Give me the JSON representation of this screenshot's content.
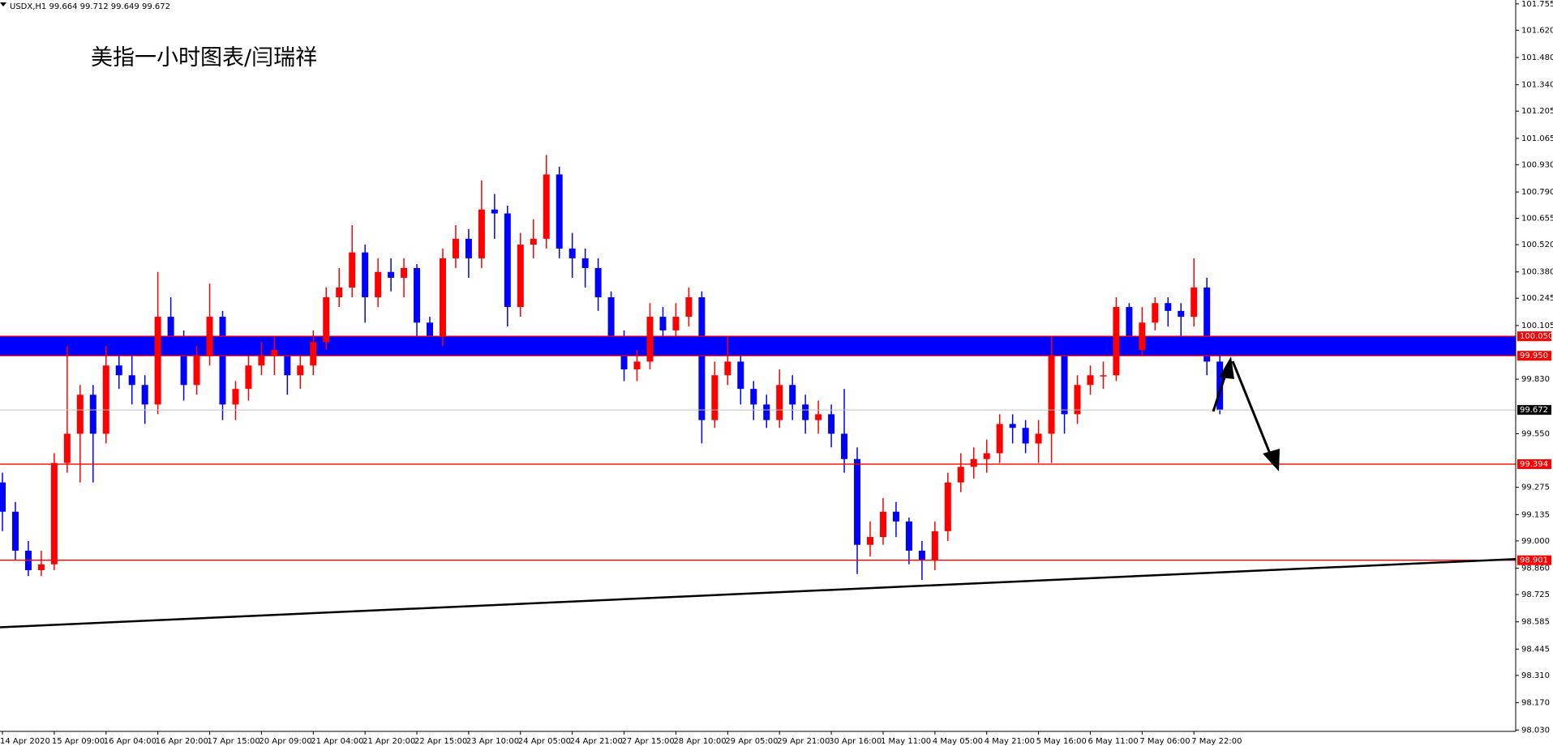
{
  "chart_data": {
    "type": "candlestick",
    "title": "美指一小时图表/闫瑞祥",
    "subtitle": "USDX,H1  99.664 99.712 99.649 99.672",
    "up_color": "#ff0000",
    "down_color": "#0000ff",
    "categories": [
      "14 Apr 2020",
      null,
      null,
      null,
      "15 Apr 09:00",
      null,
      null,
      null,
      "16 Apr 04:00",
      null,
      null,
      null,
      "16 Apr 20:00",
      null,
      null,
      null,
      "17 Apr 15:00",
      null,
      null,
      null,
      "20 Apr 09:00",
      null,
      null,
      null,
      "21 Apr 04:00",
      null,
      null,
      null,
      "21 Apr 20:00",
      null,
      null,
      null,
      "22 Apr 15:00",
      null,
      null,
      null,
      "23 Apr 10:00",
      null,
      null,
      null,
      "24 Apr 05:00",
      null,
      null,
      null,
      "24 Apr 21:00",
      null,
      null,
      null,
      "27 Apr 15:00",
      null,
      null,
      null,
      "28 Apr 10:00",
      null,
      null,
      null,
      "29 Apr 05:00",
      null,
      null,
      null,
      "29 Apr 21:00",
      null,
      null,
      null,
      "30 Apr 16:00",
      null,
      null,
      null,
      "1 May 11:00",
      null,
      null,
      null,
      "4 May 05:00",
      null,
      null,
      null,
      "4 May 21:00",
      null,
      null,
      null,
      "5 May 16:00",
      null,
      null,
      null,
      "6 May 11:00",
      null,
      null,
      null,
      "7 May 06:00",
      null,
      null,
      null,
      "7 May 22:00",
      null,
      null
    ],
    "open": [
      99.3,
      99.15,
      98.95,
      98.85,
      98.88,
      99.4,
      99.55,
      99.75,
      99.55,
      99.9,
      99.85,
      99.8,
      99.7,
      100.15,
      100.05,
      99.8,
      99.95,
      100.15,
      99.7,
      99.78,
      99.9,
      99.95,
      99.98,
      99.85,
      99.9,
      100.02,
      100.25,
      100.3,
      100.48,
      100.25,
      100.38,
      100.35,
      100.4,
      100.12,
      100.05,
      100.45,
      100.55,
      100.45,
      100.7,
      100.68,
      100.2,
      100.52,
      100.55,
      100.88,
      100.5,
      100.45,
      100.4,
      100.25,
      100.05,
      99.88,
      99.92,
      100.15,
      100.08,
      100.15,
      100.25,
      99.62,
      99.85,
      99.92,
      99.78,
      99.7,
      99.62,
      99.8,
      99.7,
      99.62,
      99.65,
      99.55,
      99.42,
      98.98,
      99.02,
      99.15,
      99.1,
      98.95,
      98.9,
      99.05,
      99.3,
      99.38,
      99.42,
      99.45,
      99.6,
      99.58,
      99.5,
      99.55,
      99.95,
      99.65,
      99.8,
      99.85,
      99.85,
      100.2,
      99.98,
      100.12,
      100.22,
      100.18,
      100.15,
      100.3,
      99.92
    ],
    "high": [
      99.35,
      99.2,
      99.0,
      98.95,
      99.45,
      100.0,
      99.8,
      99.8,
      100.0,
      100.05,
      99.95,
      99.85,
      100.38,
      100.25,
      100.08,
      100.0,
      100.32,
      100.18,
      99.82,
      99.95,
      100.02,
      100.05,
      100.02,
      99.95,
      100.08,
      100.3,
      100.4,
      100.62,
      100.52,
      100.45,
      100.45,
      100.45,
      100.42,
      100.15,
      100.5,
      100.62,
      100.6,
      100.85,
      100.78,
      100.72,
      100.58,
      100.65,
      100.98,
      100.92,
      100.58,
      100.5,
      100.45,
      100.28,
      100.08,
      99.98,
      100.22,
      100.2,
      100.22,
      100.3,
      100.28,
      99.92,
      100.05,
      99.95,
      99.82,
      99.75,
      99.88,
      99.85,
      99.75,
      99.72,
      99.7,
      99.78,
      99.48,
      99.1,
      99.22,
      99.2,
      99.12,
      99.0,
      99.1,
      99.35,
      99.45,
      99.48,
      99.52,
      99.65,
      99.65,
      99.62,
      99.62,
      100.05,
      99.98,
      99.85,
      99.9,
      99.92,
      100.25,
      100.22,
      100.2,
      100.25,
      100.25,
      100.22,
      100.45,
      100.35,
      99.95
    ],
    "low": [
      99.05,
      98.9,
      98.82,
      98.82,
      98.85,
      99.35,
      99.3,
      99.3,
      99.5,
      99.78,
      99.7,
      99.6,
      99.65,
      99.95,
      99.72,
      99.75,
      99.9,
      99.62,
      99.62,
      99.72,
      99.85,
      99.85,
      99.75,
      99.78,
      99.85,
      99.98,
      100.2,
      100.25,
      100.12,
      100.2,
      100.28,
      100.25,
      100.05,
      99.98,
      100.0,
      100.4,
      100.35,
      100.4,
      100.55,
      100.1,
      100.15,
      100.45,
      100.5,
      100.45,
      100.35,
      100.3,
      100.18,
      99.98,
      99.82,
      99.82,
      99.88,
      100.02,
      100.05,
      100.1,
      99.5,
      99.58,
      99.8,
      99.7,
      99.62,
      99.58,
      99.58,
      99.62,
      99.55,
      99.55,
      99.48,
      99.35,
      98.83,
      98.92,
      98.98,
      99.02,
      98.88,
      98.8,
      98.85,
      99.0,
      99.25,
      99.32,
      99.35,
      99.4,
      99.5,
      99.45,
      99.4,
      99.4,
      99.55,
      99.6,
      99.75,
      99.78,
      99.82,
      99.95,
      99.95,
      100.08,
      100.1,
      100.05,
      100.1,
      99.85,
      99.65
    ],
    "close": [
      99.15,
      98.95,
      98.85,
      98.88,
      99.4,
      99.55,
      99.75,
      99.55,
      99.9,
      99.85,
      99.8,
      99.7,
      100.15,
      100.05,
      99.8,
      99.95,
      100.15,
      99.7,
      99.78,
      99.9,
      99.95,
      99.98,
      99.85,
      99.9,
      100.02,
      100.25,
      100.3,
      100.48,
      100.25,
      100.38,
      100.35,
      100.4,
      100.12,
      100.05,
      100.45,
      100.55,
      100.45,
      100.7,
      100.68,
      100.2,
      100.52,
      100.55,
      100.88,
      100.5,
      100.45,
      100.4,
      100.25,
      100.05,
      99.88,
      99.92,
      100.15,
      100.08,
      100.15,
      100.25,
      99.62,
      99.85,
      99.92,
      99.78,
      99.7,
      99.62,
      99.8,
      99.7,
      99.62,
      99.65,
      99.55,
      99.42,
      98.98,
      99.02,
      99.15,
      99.1,
      98.95,
      98.9,
      99.05,
      99.3,
      99.38,
      99.42,
      99.45,
      99.6,
      99.58,
      99.5,
      99.55,
      99.95,
      99.65,
      99.8,
      99.85,
      99.85,
      100.2,
      99.98,
      100.12,
      100.22,
      100.18,
      100.15,
      100.3,
      99.92,
      99.672
    ],
    "ylim": [
      98.023,
      101.775
    ],
    "yticks": [
      101.755,
      {
        "value": 101.62,
        "label": "101.620"
      },
      {
        "value": 101.48,
        "label": "101.480"
      },
      {
        "value": 101.34,
        "label": "101.340"
      },
      101.205,
      101.065,
      {
        "value": 100.93,
        "label": "100.930"
      },
      {
        "value": 100.79,
        "label": "100.790"
      },
      100.655,
      {
        "value": 100.52,
        "label": "100.520"
      },
      {
        "value": 100.38,
        "label": "100.380"
      },
      100.245,
      100.105,
      {
        "value": 99.83,
        "label": "99.830"
      },
      {
        "value": 99.55,
        "label": "99.550"
      },
      99.275,
      99.135,
      {
        "value": 99.0,
        "label": "99.000"
      },
      {
        "value": 98.86,
        "label": "98.860"
      },
      98.725,
      98.585,
      98.445,
      {
        "value": 98.31,
        "label": "98.310"
      },
      {
        "value": 98.17,
        "label": "98.170"
      },
      {
        "value": 98.03,
        "label": "98.030"
      }
    ],
    "grid": false,
    "zone": {
      "top": 100.05,
      "bottom": 99.95,
      "color": "#0000ff"
    },
    "levels": [
      {
        "value": 100.05,
        "label": "100.050",
        "color": "#ff0000"
      },
      {
        "value": 99.95,
        "label": "99.950",
        "color": "#ff0000"
      },
      {
        "value": 99.394,
        "label": "99.394",
        "color": "#ff0000"
      },
      {
        "value": 98.901,
        "label": "98.901",
        "color": "#ff0000"
      }
    ],
    "current_price": {
      "value": 99.672,
      "label": "99.672"
    },
    "trendline": {
      "start": 98.557,
      "end": 98.907,
      "color": "#000000"
    }
  }
}
